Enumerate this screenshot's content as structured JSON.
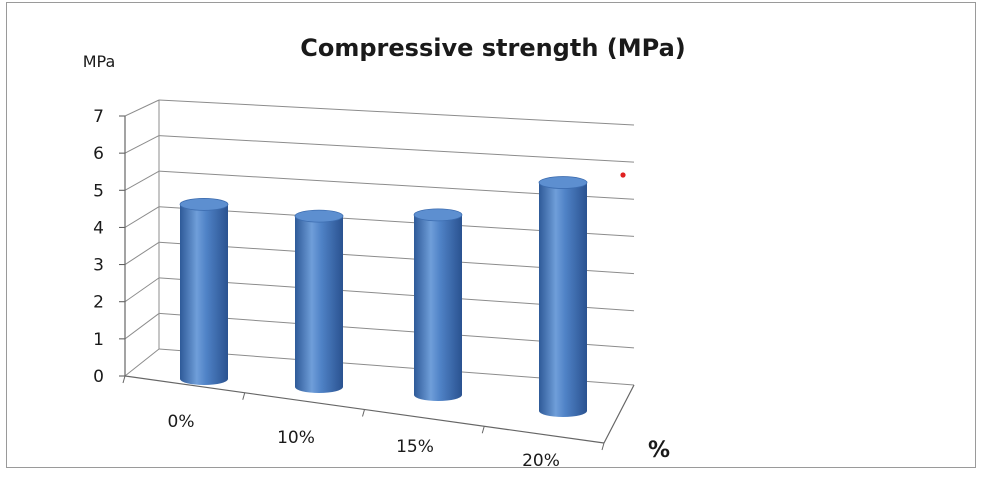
{
  "chart_data": {
    "type": "bar",
    "title": "Compressive strength (MPa)",
    "ylabel": "MPa",
    "xlabel": "%",
    "categories": [
      "0%",
      "10%",
      "15%",
      "20%"
    ],
    "values": [
      4.7,
      4.6,
      4.85,
      6.15
    ],
    "ylim": [
      0,
      7
    ],
    "yticks": [
      0,
      1,
      2,
      3,
      4,
      5,
      6,
      7
    ],
    "grid": true,
    "legend": "none",
    "bar_shape": "cylinder",
    "colors": {
      "bar": "#4a7ec2",
      "bar_dark": "#2b5693",
      "bar_light": "#8fb4e3",
      "top": "#5d8fd0",
      "grid": "#8c8c8c",
      "marker": "#e02020"
    }
  }
}
